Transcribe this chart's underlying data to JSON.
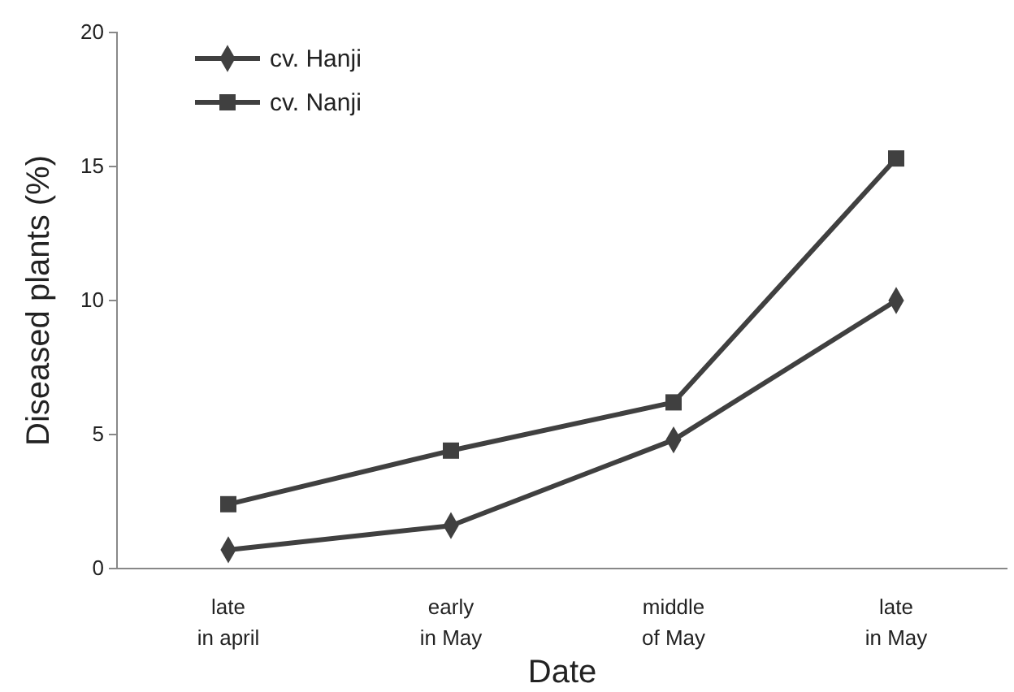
{
  "chart_data": {
    "type": "line",
    "xlabel": "Date",
    "ylabel": "Diseased plants (%)",
    "categories": [
      "late\nin april",
      "early\nin May",
      "middle\nof May",
      "late\nin May"
    ],
    "series": [
      {
        "name": "cv. Hanji",
        "color": "#404040",
        "marker": "diamond",
        "values": [
          0.7,
          1.6,
          4.8,
          10
        ]
      },
      {
        "name": "cv. Nanji",
        "color": "#404040",
        "marker": "square",
        "values": [
          2.4,
          4.4,
          6.2,
          15.3
        ]
      }
    ],
    "ylim": [
      0,
      20
    ],
    "yticks": [
      0,
      5,
      10,
      15,
      20
    ],
    "grid": false,
    "legend": "top left",
    "line_style": "solid"
  }
}
